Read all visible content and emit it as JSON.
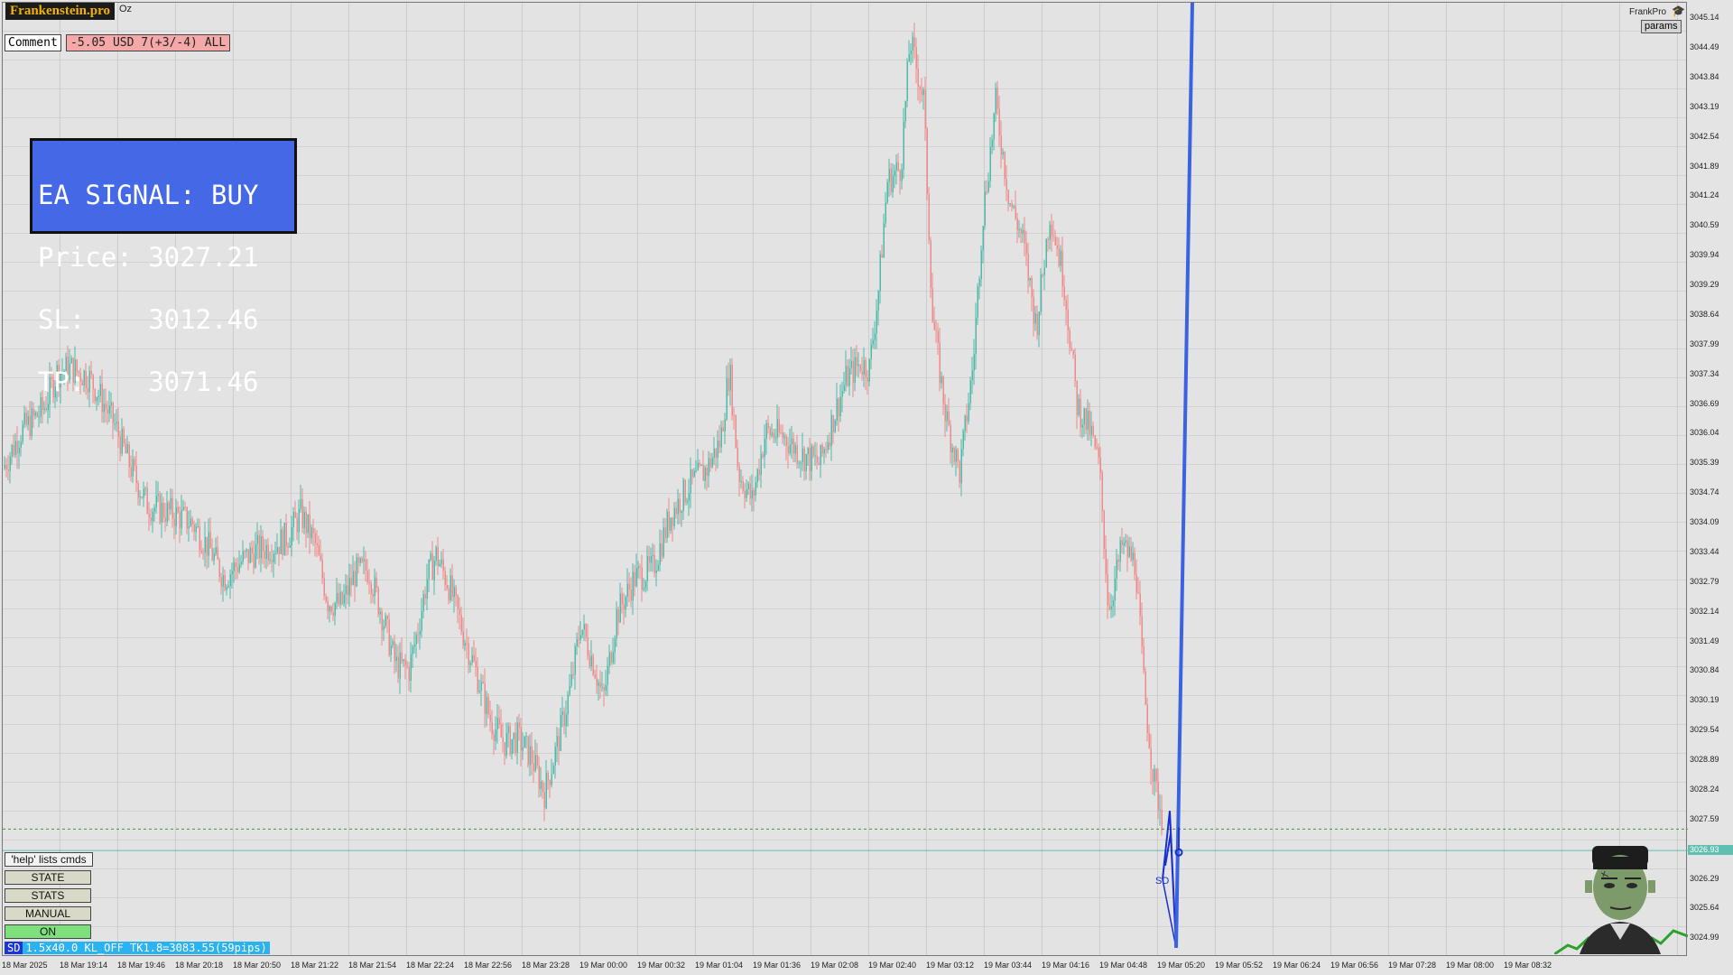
{
  "brand": "Frankenstein.pro",
  "symbol_label": "Oz",
  "comment_button": "Comment",
  "pnl_text": "-5.05 USD 7(+3/-4) ALL",
  "signal_panel": {
    "line1": "EA SIGNAL: BUY",
    "line2": "Price: 3027.21",
    "line3": "SL:    3012.46",
    "line4": "TP:    3071.46",
    "color": "#4468e6"
  },
  "top_right": {
    "label": "FrankPro",
    "icon": "graduation-cap-icon",
    "params_button": "params"
  },
  "price_axis": [
    "3045.14",
    "3044.49",
    "3043.84",
    "3043.19",
    "3042.54",
    "3041.89",
    "3041.24",
    "3040.59",
    "3039.94",
    "3039.29",
    "3038.64",
    "3037.99",
    "3037.34",
    "3036.69",
    "3036.04",
    "3035.39",
    "3034.74",
    "3034.09",
    "3033.44",
    "3032.79",
    "3032.14",
    "3031.49",
    "3030.84",
    "3030.19",
    "3029.54",
    "3028.89",
    "3028.24",
    "3027.59",
    "3026.94",
    "3026.29",
    "3025.64",
    "3024.99"
  ],
  "current_price_tag": "3026.93",
  "time_axis": [
    "18 Mar 2025",
    "18 Mar 19:14",
    "18 Mar 19:46",
    "18 Mar 20:18",
    "18 Mar 20:50",
    "18 Mar 21:22",
    "18 Mar 21:54",
    "18 Mar 22:24",
    "18 Mar 22:56",
    "18 Mar 23:28",
    "19 Mar 00:00",
    "19 Mar 00:32",
    "19 Mar 01:04",
    "19 Mar 01:36",
    "19 Mar 02:08",
    "19 Mar 02:40",
    "19 Mar 03:12",
    "19 Mar 03:44",
    "19 Mar 04:16",
    "19 Mar 04:48",
    "19 Mar 05:20",
    "19 Mar 05:52",
    "19 Mar 06:24",
    "19 Mar 06:56",
    "19 Mar 07:28",
    "19 Mar 08:00",
    "19 Mar 08:32"
  ],
  "commands": {
    "help": "'help' lists cmds",
    "state": "STATE",
    "stats": "STATS",
    "manual": "MANUAL",
    "on": "ON"
  },
  "status_bar": {
    "tag": "SD",
    "text": "1.5x40.0 KL_OFF TK1.8=3083.55(59pips)"
  },
  "pattern_label": "SD",
  "colors": {
    "bull": "#4fb9a8",
    "bear": "#ef8a8a",
    "trend_line": "#3b62e0",
    "pattern": "#1a2fcf",
    "price_line": "#5fbfb0"
  },
  "chart_data": {
    "type": "candlestick",
    "ylim": [
      3024.6,
      3045.5
    ],
    "path_points": [
      [
        0,
        3035.3
      ],
      [
        20,
        3036.1
      ],
      [
        45,
        3036.6
      ],
      [
        60,
        3037.4
      ],
      [
        75,
        3037.5
      ],
      [
        95,
        3037.3
      ],
      [
        110,
        3036.8
      ],
      [
        125,
        3036.2
      ],
      [
        140,
        3035.4
      ],
      [
        160,
        3034.5
      ],
      [
        175,
        3034.4
      ],
      [
        190,
        3034.3
      ],
      [
        210,
        3034.1
      ],
      [
        230,
        3033.5
      ],
      [
        245,
        3032.9
      ],
      [
        260,
        3033.2
      ],
      [
        280,
        3033.5
      ],
      [
        300,
        3033.6
      ],
      [
        315,
        3033.8
      ],
      [
        330,
        3034.3
      ],
      [
        345,
        3033.7
      ],
      [
        360,
        3032.4
      ],
      [
        375,
        3032.3
      ],
      [
        390,
        3033.0
      ],
      [
        405,
        3033.1
      ],
      [
        420,
        3032.1
      ],
      [
        435,
        3031.0
      ],
      [
        450,
        3030.9
      ],
      [
        460,
        3031.8
      ],
      [
        470,
        3032.9
      ],
      [
        480,
        3033.4
      ],
      [
        495,
        3032.7
      ],
      [
        510,
        3031.7
      ],
      [
        525,
        3030.8
      ],
      [
        540,
        3029.8
      ],
      [
        555,
        3029.3
      ],
      [
        570,
        3029.4
      ],
      [
        585,
        3029.0
      ],
      [
        600,
        3028.2
      ],
      [
        615,
        3029.3
      ],
      [
        630,
        3030.6
      ],
      [
        640,
        3031.9
      ],
      [
        655,
        3031.0
      ],
      [
        665,
        3030.2
      ],
      [
        680,
        3032.1
      ],
      [
        700,
        3032.9
      ],
      [
        720,
        3033.1
      ],
      [
        740,
        3034.3
      ],
      [
        760,
        3034.9
      ],
      [
        780,
        3035.3
      ],
      [
        795,
        3035.9
      ],
      [
        805,
        3037.5
      ],
      [
        815,
        3035.2
      ],
      [
        830,
        3034.6
      ],
      [
        845,
        3036.1
      ],
      [
        865,
        3036.0
      ],
      [
        885,
        3035.6
      ],
      [
        905,
        3035.4
      ],
      [
        920,
        3036.4
      ],
      [
        935,
        3037.3
      ],
      [
        950,
        3037.6
      ],
      [
        960,
        3037.5
      ],
      [
        970,
        3039.2
      ],
      [
        980,
        3041.6
      ],
      [
        995,
        3041.9
      ],
      [
        1005,
        3044.7
      ],
      [
        1020,
        3043.4
      ],
      [
        1030,
        3038.6
      ],
      [
        1045,
        3036.4
      ],
      [
        1060,
        3035.2
      ],
      [
        1075,
        3037.6
      ],
      [
        1085,
        3040.7
      ],
      [
        1100,
        3043.3
      ],
      [
        1115,
        3041.2
      ],
      [
        1130,
        3040.3
      ],
      [
        1145,
        3038.4
      ],
      [
        1160,
        3040.9
      ],
      [
        1175,
        3039.5
      ],
      [
        1190,
        3036.7
      ],
      [
        1205,
        3036.1
      ],
      [
        1215,
        3035.3
      ],
      [
        1225,
        3032.2
      ],
      [
        1240,
        3033.6
      ],
      [
        1255,
        3033.2
      ],
      [
        1265,
        3030.3
      ],
      [
        1275,
        3028.5
      ],
      [
        1285,
        3027.6
      ]
    ],
    "pattern_points": [
      [
        1285,
        3026.3
      ],
      [
        1293,
        3027.8
      ],
      [
        1300,
        3024.8
      ],
      [
        1294,
        3027.3
      ],
      [
        1288,
        3026.6
      ]
    ],
    "trend_line": [
      [
        1300,
        3024.8
      ],
      [
        1318,
        3045.5
      ]
    ],
    "dotted_level": 3027.4,
    "current_price": 3026.93
  }
}
